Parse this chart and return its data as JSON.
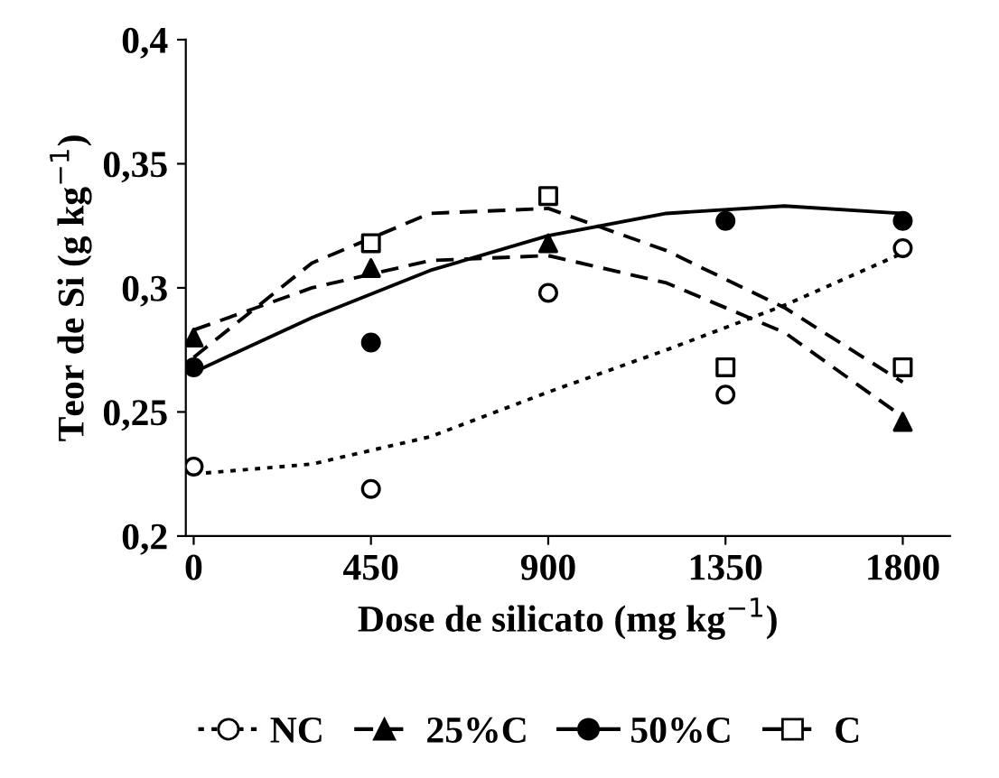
{
  "chart_data": {
    "type": "scatter",
    "xlabel": "Dose de silicato (mg kg$^{−1}$)",
    "ylabel": "Teor de Si (g kg$^{−1}$)",
    "xlim": [
      -20,
      1920
    ],
    "ylim": [
      0.2,
      0.4
    ],
    "xticks": [
      0,
      450,
      900,
      1350,
      1800
    ],
    "yticks": [
      {
        "value": 0.2,
        "label": "0,2"
      },
      {
        "value": 0.25,
        "label": "0,25"
      },
      {
        "value": 0.3,
        "label": "0,3"
      },
      {
        "value": 0.35,
        "label": "0,35"
      },
      {
        "value": 0.4,
        "label": "0,4"
      }
    ],
    "grid": false,
    "legend": "bottom",
    "x": [
      0,
      450,
      900,
      1350,
      1800
    ],
    "series": [
      {
        "name": "NC",
        "color": "#ffffff",
        "marker": "circle",
        "values": [
          0.228,
          0.219,
          0.298,
          0.257,
          0.316
        ]
      },
      {
        "name": "25%C",
        "color": "#000000",
        "marker": "triangle",
        "values": [
          0.28,
          0.308,
          0.318,
          null,
          0.246
        ]
      },
      {
        "name": "50%C",
        "color": "#000000",
        "marker": "circle",
        "values": [
          0.268,
          0.278,
          null,
          0.327,
          0.327
        ]
      },
      {
        "name": "C",
        "color": "#ffffff",
        "marker": "square",
        "values": [
          null,
          0.318,
          0.337,
          0.268,
          0.268
        ]
      },
      {
        "type": "line",
        "color": "#000000",
        "line_style": "dotted",
        "x": [
          0,
          300,
          600,
          900,
          1200,
          1500,
          1800
        ],
        "values": [
          0.225,
          0.229,
          0.24,
          0.258,
          0.275,
          0.293,
          0.314
        ]
      },
      {
        "type": "line",
        "color": "#000000",
        "line_style": "dashed",
        "x": [
          0,
          300,
          600,
          900,
          1200,
          1500,
          1800
        ],
        "values": [
          0.283,
          0.3,
          0.311,
          0.313,
          0.302,
          0.282,
          0.248
        ]
      },
      {
        "type": "line",
        "color": "#000000",
        "line_style": "solid",
        "x": [
          0,
          300,
          600,
          900,
          1200,
          1500,
          1800
        ],
        "values": [
          0.266,
          0.288,
          0.307,
          0.321,
          0.33,
          0.333,
          0.33
        ]
      },
      {
        "type": "line",
        "color": "#000000",
        "line_style": "dashed",
        "x": [
          0,
          300,
          600,
          900,
          1200,
          1500,
          1800
        ],
        "values": [
          0.272,
          0.31,
          0.33,
          0.332,
          0.315,
          0.292,
          0.262
        ]
      }
    ]
  }
}
